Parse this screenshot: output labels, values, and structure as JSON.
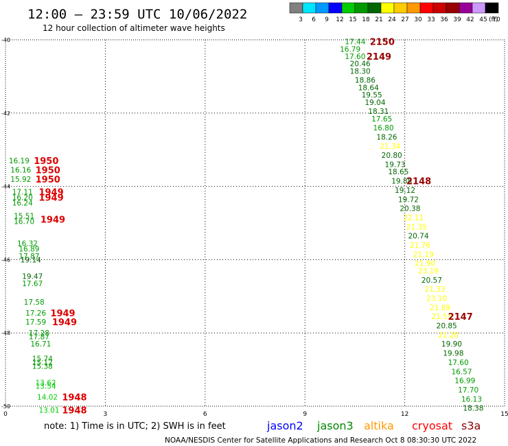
{
  "header": {
    "title": "12:00 – 23:59 UTC 10/06/2022",
    "subtitle": "12 hour collection of altimeter wave heights"
  },
  "legend_scale": {
    "unit": "(ft)",
    "bins": [
      {
        "label": "3",
        "color": "#808080"
      },
      {
        "label": "6",
        "color": "#00e5ff"
      },
      {
        "label": "9",
        "color": "#0099ff"
      },
      {
        "label": "12",
        "color": "#0000ff"
      },
      {
        "label": "15",
        "color": "#00cc00"
      },
      {
        "label": "18",
        "color": "#009900"
      },
      {
        "label": "21",
        "color": "#006600"
      },
      {
        "label": "24",
        "color": "#ffff00"
      },
      {
        "label": "27",
        "color": "#ffcc00"
      },
      {
        "label": "30",
        "color": "#ff9900"
      },
      {
        "label": "33",
        "color": "#ff0000"
      },
      {
        "label": "36",
        "color": "#cc0000"
      },
      {
        "label": "39",
        "color": "#990000"
      },
      {
        "label": "42",
        "color": "#990099"
      },
      {
        "label": "45",
        "color": "#cc99ff"
      },
      {
        "label": "70",
        "color": "#000000"
      }
    ]
  },
  "footer": {
    "note": "note:  1) Time is in UTC;  2) SWH is in feet",
    "credit": "NOAA/NESDIS Center for Satellite Applications and Research   Oct  8 08:30:30 UTC 2022",
    "satellites": [
      {
        "name": "jason2",
        "color": "#0000ff"
      },
      {
        "name": "jason3",
        "color": "#008800"
      },
      {
        "name": "altika",
        "color": "#ff9900"
      },
      {
        "name": "cryosat",
        "color": "#ff0000"
      },
      {
        "name": "s3a",
        "color": "#880000"
      }
    ]
  },
  "chart_data": {
    "type": "scatter",
    "title": "12:00 – 23:59 UTC 10/06/2022",
    "subtitle": "12 hour collection of altimeter wave heights",
    "xlim": [
      0,
      15
    ],
    "ylim": [
      -50,
      -40
    ],
    "x_ticks": [
      0,
      3,
      6,
      9,
      12,
      15
    ],
    "y_ticks": [
      -40,
      -42,
      -44,
      -46,
      -48,
      -50
    ],
    "grid": true,
    "series": [
      {
        "name": "jason3",
        "points": [
          {
            "x": 10.2,
            "y": -40.05,
            "v": "17.44"
          },
          {
            "x": 10.05,
            "y": -40.25,
            "v": "16.79"
          },
          {
            "x": 10.2,
            "y": -40.45,
            "v": "17.60"
          },
          {
            "x": 10.35,
            "y": -40.65,
            "v": "20.46"
          },
          {
            "x": 10.35,
            "y": -40.85,
            "v": "18.30"
          },
          {
            "x": 10.5,
            "y": -41.1,
            "v": "18.86"
          },
          {
            "x": 10.6,
            "y": -41.3,
            "v": "18.64"
          },
          {
            "x": 10.7,
            "y": -41.5,
            "v": "19.55"
          },
          {
            "x": 10.8,
            "y": -41.7,
            "v": "19.04"
          },
          {
            "x": 10.9,
            "y": -41.95,
            "v": "18.31"
          },
          {
            "x": 11.0,
            "y": -42.15,
            "v": "17.65"
          },
          {
            "x": 11.05,
            "y": -42.4,
            "v": "16.80"
          },
          {
            "x": 11.15,
            "y": -42.65,
            "v": "18.26"
          },
          {
            "x": 11.25,
            "y": -42.9,
            "v": "21.34"
          },
          {
            "x": 11.3,
            "y": -43.15,
            "v": "20.80"
          },
          {
            "x": 11.4,
            "y": -43.4,
            "v": "19.73"
          },
          {
            "x": 11.5,
            "y": -43.6,
            "v": "18.65"
          },
          {
            "x": 11.6,
            "y": -43.85,
            "v": "19.88"
          },
          {
            "x": 11.7,
            "y": -44.1,
            "v": "19.12"
          },
          {
            "x": 11.8,
            "y": -44.35,
            "v": "19.72"
          },
          {
            "x": 11.85,
            "y": -44.6,
            "v": "20.38"
          },
          {
            "x": 11.95,
            "y": -44.85,
            "v": "22.11"
          },
          {
            "x": 12.05,
            "y": -45.1,
            "v": "21.35"
          },
          {
            "x": 12.1,
            "y": -45.35,
            "v": "20.74"
          },
          {
            "x": 12.15,
            "y": -45.6,
            "v": "21.76"
          },
          {
            "x": 12.25,
            "y": -45.85,
            "v": "21.19"
          },
          {
            "x": 12.3,
            "y": -46.1,
            "v": "21.90"
          },
          {
            "x": 12.4,
            "y": -46.3,
            "v": "23.19"
          },
          {
            "x": 12.5,
            "y": -46.55,
            "v": "20.57"
          },
          {
            "x": 12.6,
            "y": -46.8,
            "v": "21.33"
          },
          {
            "x": 12.65,
            "y": -47.05,
            "v": "23.10"
          },
          {
            "x": 12.75,
            "y": -47.3,
            "v": "21.89"
          },
          {
            "x": 12.8,
            "y": -47.55,
            "v": "21.53"
          },
          {
            "x": 12.95,
            "y": -47.8,
            "v": "20.85"
          },
          {
            "x": 13.0,
            "y": -48.05,
            "v": "21.20"
          },
          {
            "x": 13.1,
            "y": -48.3,
            "v": "19.90"
          },
          {
            "x": 13.15,
            "y": -48.55,
            "v": "19.98"
          },
          {
            "x": 13.3,
            "y": -48.8,
            "v": "17.60"
          },
          {
            "x": 13.4,
            "y": -49.05,
            "v": "16.57"
          },
          {
            "x": 13.5,
            "y": -49.3,
            "v": "16.99"
          },
          {
            "x": 13.6,
            "y": -49.55,
            "v": "17.70"
          },
          {
            "x": 13.7,
            "y": -49.8,
            "v": "16.13"
          },
          {
            "x": 13.75,
            "y": -50.05,
            "v": "18.38"
          },
          {
            "x": 0.1,
            "y": -43.3,
            "v": "16.19"
          },
          {
            "x": 0.15,
            "y": -43.55,
            "v": "16.16"
          },
          {
            "x": 0.15,
            "y": -43.8,
            "v": "15.92"
          },
          {
            "x": 0.2,
            "y": -44.15,
            "v": "17.11"
          },
          {
            "x": 0.2,
            "y": -44.3,
            "v": "16.20"
          },
          {
            "x": 0.2,
            "y": -44.45,
            "v": "16.24"
          },
          {
            "x": 0.25,
            "y": -44.8,
            "v": "15.51"
          },
          {
            "x": 0.25,
            "y": -44.95,
            "v": "16.70"
          },
          {
            "x": 0.35,
            "y": -45.55,
            "v": "16.32"
          },
          {
            "x": 0.4,
            "y": -45.7,
            "v": "16.89"
          },
          {
            "x": 0.4,
            "y": -45.9,
            "v": "17.87"
          },
          {
            "x": 0.45,
            "y": -46.0,
            "v": "19.14"
          },
          {
            "x": 0.5,
            "y": -46.45,
            "v": "19.47"
          },
          {
            "x": 0.5,
            "y": -46.65,
            "v": "17.67"
          },
          {
            "x": 0.55,
            "y": -47.15,
            "v": "17.58"
          },
          {
            "x": 0.6,
            "y": -47.45,
            "v": "17.26"
          },
          {
            "x": 0.6,
            "y": -47.7,
            "v": "17.59"
          },
          {
            "x": 0.7,
            "y": -48.0,
            "v": "17.28"
          },
          {
            "x": 0.7,
            "y": -48.1,
            "v": "17.87"
          },
          {
            "x": 0.75,
            "y": -48.3,
            "v": "16.71"
          },
          {
            "x": 0.8,
            "y": -48.7,
            "v": "15.74"
          },
          {
            "x": 0.8,
            "y": -48.8,
            "v": "15.12"
          },
          {
            "x": 0.8,
            "y": -48.9,
            "v": "15.38"
          },
          {
            "x": 0.9,
            "y": -49.35,
            "v": "13.62"
          },
          {
            "x": 0.9,
            "y": -49.45,
            "v": "13.54"
          },
          {
            "x": 0.95,
            "y": -49.75,
            "v": "14.02"
          },
          {
            "x": 1.0,
            "y": -50.1,
            "v": "13.01"
          }
        ]
      }
    ],
    "annotations": [
      {
        "x": 10.95,
        "y": -40.05,
        "text": "2150",
        "color": "#990000"
      },
      {
        "x": 10.85,
        "y": -40.45,
        "text": "2149",
        "color": "#990000"
      },
      {
        "x": 12.05,
        "y": -43.85,
        "text": "2148",
        "color": "#990000"
      },
      {
        "x": 13.3,
        "y": -47.55,
        "text": "2147",
        "color": "#990000"
      },
      {
        "x": 0.85,
        "y": -43.3,
        "text": "1950",
        "color": "#dd0000"
      },
      {
        "x": 0.9,
        "y": -43.55,
        "text": "1950",
        "color": "#dd0000"
      },
      {
        "x": 0.9,
        "y": -43.8,
        "text": "1950",
        "color": "#dd0000"
      },
      {
        "x": 1.0,
        "y": -44.15,
        "text": "1949",
        "color": "#dd0000"
      },
      {
        "x": 1.0,
        "y": -44.3,
        "text": "1949",
        "color": "#dd0000"
      },
      {
        "x": 1.05,
        "y": -44.9,
        "text": "1949",
        "color": "#dd0000"
      },
      {
        "x": 1.35,
        "y": -47.45,
        "text": "1949",
        "color": "#dd0000"
      },
      {
        "x": 1.4,
        "y": -47.7,
        "text": "1949",
        "color": "#dd0000"
      },
      {
        "x": 1.7,
        "y": -49.75,
        "text": "1948",
        "color": "#dd0000"
      },
      {
        "x": 1.7,
        "y": -50.1,
        "text": "1948",
        "color": "#dd0000"
      }
    ]
  }
}
